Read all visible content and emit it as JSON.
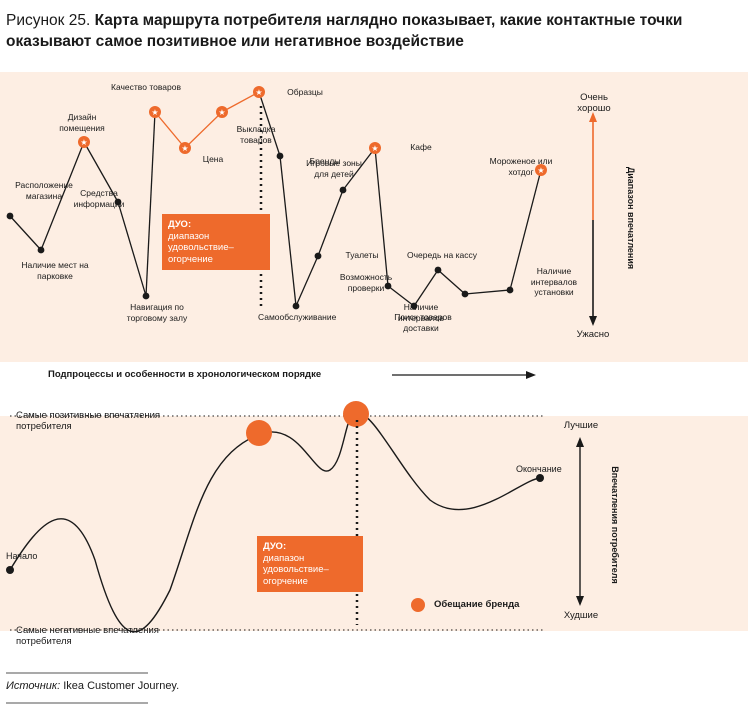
{
  "title": {
    "figure_label": "Рисунок 25.",
    "text": "Карта маршрута потребителя наглядно показывает, какие контактные точки оказывают самое позитивное или негативное воздействие"
  },
  "top_chart": {
    "axis_top_label": "Очень хорошо",
    "axis_bottom_label": "Ужасно",
    "axis_title": "Диапазон впечатления",
    "x_title": "Подпроцессы и особенности в хронологическом порядке",
    "duo_title": "ДУО:",
    "duo_text": "диапазон удовольствие–огорчение",
    "points": [
      {
        "label": "Расположение магазина",
        "rating": 5.5,
        "star": false
      },
      {
        "label": "Наличие мест на парковке",
        "rating": 3.8,
        "star": false
      },
      {
        "label": "Дизайн помещения",
        "rating": 9.2,
        "star": true
      },
      {
        "label": "Средства информации",
        "rating": 6.2,
        "star": false
      },
      {
        "label": "Навигация по торговому залу",
        "rating": 1.5,
        "star": false
      },
      {
        "label": "Качество товаров",
        "rating": 10.7,
        "star": true
      },
      {
        "label": "Цена",
        "rating": 8.9,
        "star": true
      },
      {
        "label": "Выкладка товаров",
        "rating": 10.7,
        "star": true
      },
      {
        "label": "Образцы",
        "rating": 11.7,
        "star": true
      },
      {
        "label": "Бренды",
        "rating": 8.5,
        "star": false
      },
      {
        "label": "Самообслуживание",
        "rating": 1.0,
        "star": false
      },
      {
        "label": "Туалеты",
        "rating": 3.5,
        "star": false
      },
      {
        "label": "Игровые зоны для детей",
        "rating": 6.8,
        "star": false
      },
      {
        "label": "Кафе",
        "rating": 8.9,
        "star": true
      },
      {
        "label": "Возможность проверки",
        "rating": 2.0,
        "star": false
      },
      {
        "label": "Поиск товаров",
        "rating": 1.0,
        "star": false
      },
      {
        "label": "Очередь на кассу",
        "rating": 2.8,
        "star": false
      },
      {
        "label": "Наличие интервалов доставки",
        "rating": 1.6,
        "star": false
      },
      {
        "label": "Наличие интервалов установки",
        "rating": 1.8,
        "star": false
      },
      {
        "label": "Мороженое или хотдог",
        "rating": 7.8,
        "star": true
      }
    ]
  },
  "bottom_chart": {
    "top_line_label": "Самые позитивные впечатления потребителя",
    "bottom_line_label": "Самые негативные впечатления потребителя",
    "axis_top_label": "Лучшие",
    "axis_bottom_label": "Худшие",
    "axis_title": "Впечатления потребителя",
    "start_label": "Начало",
    "end_label": "Окончание",
    "duo_title": "ДУО:",
    "duo_text": "диапазон удовольствие–огорчение",
    "legend_label": "Обещание бренда"
  },
  "source": {
    "prefix": "Источник:",
    "text": "Ikea Customer Journey."
  },
  "colors": {
    "accent": "#ee6a2c",
    "panel": "#fdeee3",
    "line": "#1a1a1a"
  }
}
